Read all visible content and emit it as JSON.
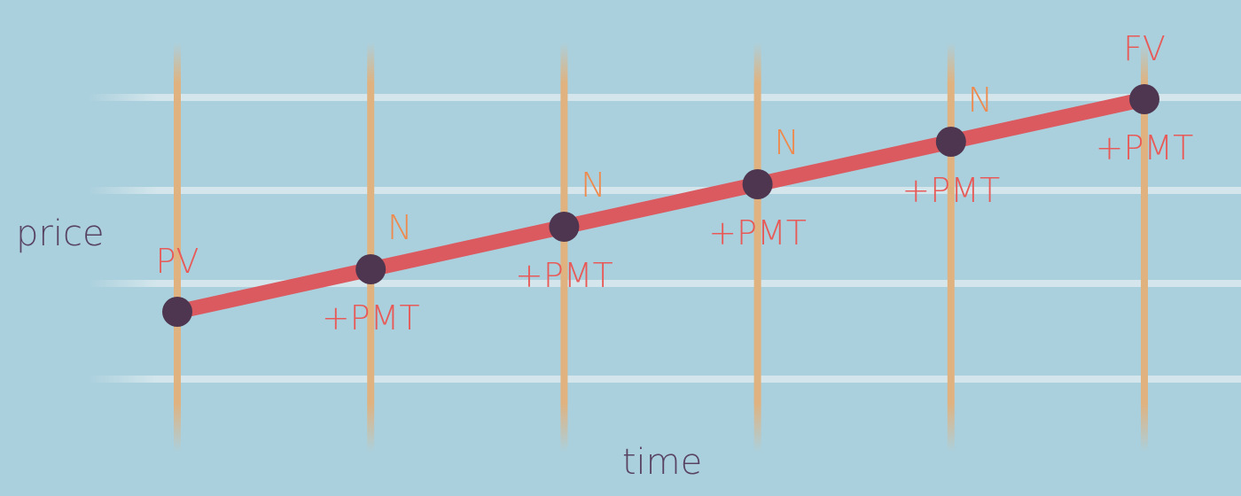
{
  "background_color": "#abd0dd",
  "colors": {
    "gridline": "#d4e6ec",
    "time_marker": "#e0b27f",
    "value_line": "#db5a60",
    "point": "#4e3650",
    "point_label": "#e85a57",
    "period_label": "#ee8a4e",
    "axis_label": "#584363"
  },
  "axes": {
    "y_label": "price",
    "x_label": "time"
  },
  "points": [
    {
      "label": "PV",
      "payment_label": null,
      "period_label": null,
      "level": 0
    },
    {
      "label": null,
      "payment_label": "+PMT",
      "period_label": "N",
      "level": 1
    },
    {
      "label": null,
      "payment_label": "+PMT",
      "period_label": "N",
      "level": 2
    },
    {
      "label": null,
      "payment_label": "+PMT",
      "period_label": "N",
      "level": 3
    },
    {
      "label": null,
      "payment_label": "+PMT",
      "period_label": "N",
      "level": 4
    },
    {
      "label": "FV",
      "payment_label": "+PMT",
      "period_label": null,
      "level": 5
    }
  ]
}
